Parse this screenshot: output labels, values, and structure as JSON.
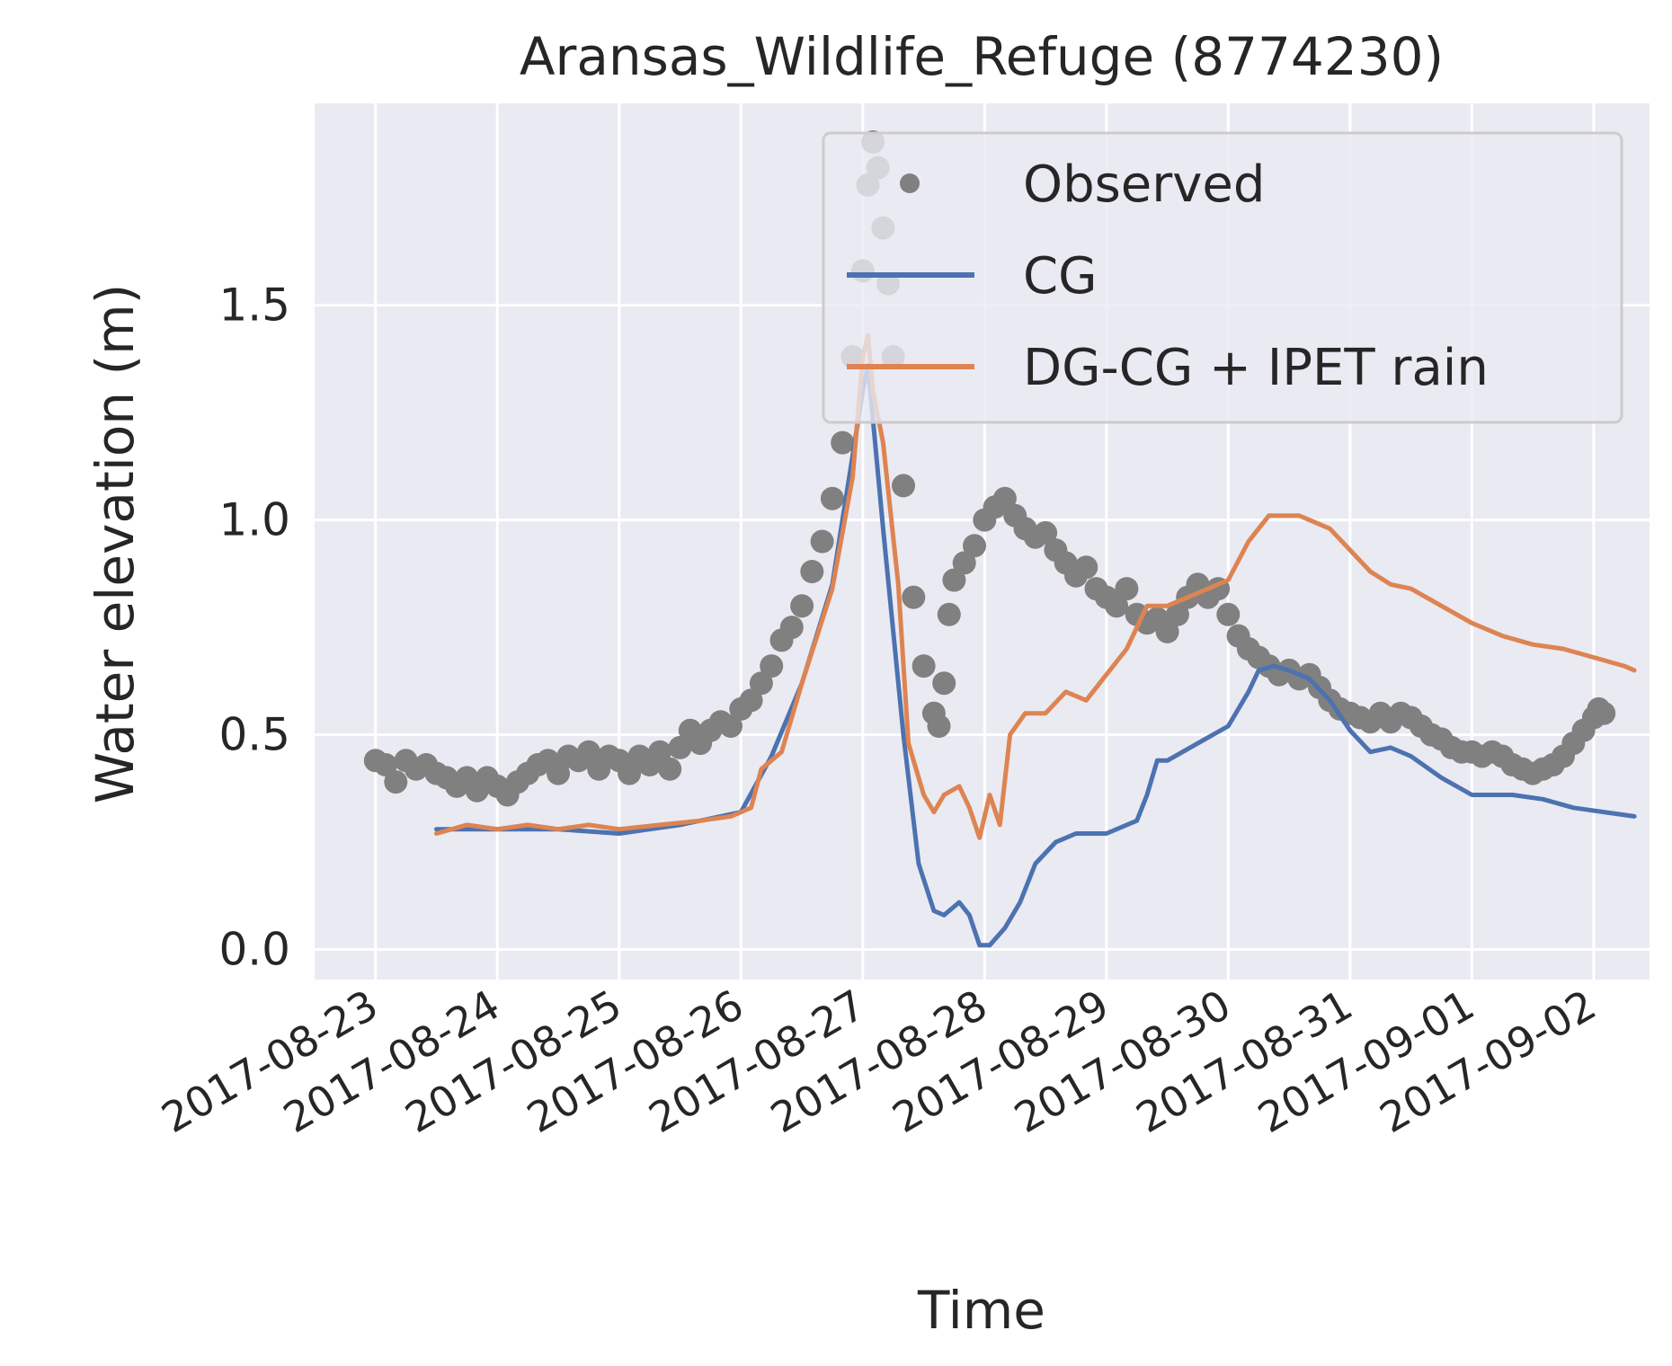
{
  "chart_data": {
    "type": "line",
    "title": "Aransas_Wildlife_Refuge (8774230)",
    "xlabel": "Time",
    "ylabel": "Water elevation (m)",
    "x_type": "date",
    "xlim": [
      "2017-08-22T12:00",
      "2017-09-02T11:00"
    ],
    "ylim": [
      -0.07,
      1.97
    ],
    "x_ticks": [
      "2017-08-23",
      "2017-08-24",
      "2017-08-25",
      "2017-08-26",
      "2017-08-27",
      "2017-08-28",
      "2017-08-29",
      "2017-08-30",
      "2017-08-31",
      "2017-09-01",
      "2017-09-02"
    ],
    "y_ticks": [
      "0.0",
      "0.5",
      "1.0",
      "1.5"
    ],
    "y_tick_values": [
      0.0,
      0.5,
      1.0,
      1.5
    ],
    "grid": true,
    "legend_position": "top-right",
    "colors": {
      "background": "#EAEAF2",
      "grid": "#FFFFFF",
      "text": "#262626"
    },
    "series": [
      {
        "name": "Observed",
        "style": "markers",
        "color": "#808080",
        "points": [
          [
            "2017-08-23T00:00",
            0.44
          ],
          [
            "2017-08-23T02:00",
            0.43
          ],
          [
            "2017-08-23T04:00",
            0.39
          ],
          [
            "2017-08-23T06:00",
            0.44
          ],
          [
            "2017-08-23T08:00",
            0.42
          ],
          [
            "2017-08-23T10:00",
            0.43
          ],
          [
            "2017-08-23T12:00",
            0.41
          ],
          [
            "2017-08-23T14:00",
            0.4
          ],
          [
            "2017-08-23T16:00",
            0.38
          ],
          [
            "2017-08-23T18:00",
            0.4
          ],
          [
            "2017-08-23T20:00",
            0.37
          ],
          [
            "2017-08-23T22:00",
            0.4
          ],
          [
            "2017-08-24T00:00",
            0.38
          ],
          [
            "2017-08-24T02:00",
            0.36
          ],
          [
            "2017-08-24T04:00",
            0.39
          ],
          [
            "2017-08-24T06:00",
            0.41
          ],
          [
            "2017-08-24T08:00",
            0.43
          ],
          [
            "2017-08-24T10:00",
            0.44
          ],
          [
            "2017-08-24T12:00",
            0.41
          ],
          [
            "2017-08-24T14:00",
            0.45
          ],
          [
            "2017-08-24T16:00",
            0.44
          ],
          [
            "2017-08-24T18:00",
            0.46
          ],
          [
            "2017-08-24T20:00",
            0.42
          ],
          [
            "2017-08-24T22:00",
            0.45
          ],
          [
            "2017-08-25T00:00",
            0.44
          ],
          [
            "2017-08-25T02:00",
            0.41
          ],
          [
            "2017-08-25T04:00",
            0.45
          ],
          [
            "2017-08-25T06:00",
            0.43
          ],
          [
            "2017-08-25T08:00",
            0.46
          ],
          [
            "2017-08-25T10:00",
            0.42
          ],
          [
            "2017-08-25T12:00",
            0.47
          ],
          [
            "2017-08-25T14:00",
            0.51
          ],
          [
            "2017-08-25T16:00",
            0.48
          ],
          [
            "2017-08-25T18:00",
            0.51
          ],
          [
            "2017-08-25T20:00",
            0.53
          ],
          [
            "2017-08-25T22:00",
            0.52
          ],
          [
            "2017-08-26T00:00",
            0.56
          ],
          [
            "2017-08-26T02:00",
            0.58
          ],
          [
            "2017-08-26T04:00",
            0.62
          ],
          [
            "2017-08-26T06:00",
            0.66
          ],
          [
            "2017-08-26T08:00",
            0.72
          ],
          [
            "2017-08-26T10:00",
            0.75
          ],
          [
            "2017-08-26T12:00",
            0.8
          ],
          [
            "2017-08-26T14:00",
            0.88
          ],
          [
            "2017-08-26T16:00",
            0.95
          ],
          [
            "2017-08-26T18:00",
            1.05
          ],
          [
            "2017-08-26T20:00",
            1.18
          ],
          [
            "2017-08-26T22:00",
            1.38
          ],
          [
            "2017-08-27T00:00",
            1.58
          ],
          [
            "2017-08-27T01:00",
            1.78
          ],
          [
            "2017-08-27T02:00",
            1.88
          ],
          [
            "2017-08-27T03:00",
            1.82
          ],
          [
            "2017-08-27T04:00",
            1.68
          ],
          [
            "2017-08-27T05:00",
            1.55
          ],
          [
            "2017-08-27T06:00",
            1.38
          ],
          [
            "2017-08-27T08:00",
            1.08
          ],
          [
            "2017-08-27T10:00",
            0.82
          ],
          [
            "2017-08-27T12:00",
            0.66
          ],
          [
            "2017-08-27T14:00",
            0.55
          ],
          [
            "2017-08-27T15:00",
            0.52
          ],
          [
            "2017-08-27T16:00",
            0.62
          ],
          [
            "2017-08-27T17:00",
            0.78
          ],
          [
            "2017-08-27T18:00",
            0.86
          ],
          [
            "2017-08-27T20:00",
            0.9
          ],
          [
            "2017-08-27T22:00",
            0.94
          ],
          [
            "2017-08-28T00:00",
            1.0
          ],
          [
            "2017-08-28T02:00",
            1.03
          ],
          [
            "2017-08-28T04:00",
            1.05
          ],
          [
            "2017-08-28T06:00",
            1.01
          ],
          [
            "2017-08-28T08:00",
            0.98
          ],
          [
            "2017-08-28T10:00",
            0.96
          ],
          [
            "2017-08-28T12:00",
            0.97
          ],
          [
            "2017-08-28T14:00",
            0.93
          ],
          [
            "2017-08-28T16:00",
            0.9
          ],
          [
            "2017-08-28T18:00",
            0.87
          ],
          [
            "2017-08-28T20:00",
            0.89
          ],
          [
            "2017-08-28T22:00",
            0.84
          ],
          [
            "2017-08-29T00:00",
            0.82
          ],
          [
            "2017-08-29T02:00",
            0.8
          ],
          [
            "2017-08-29T04:00",
            0.84
          ],
          [
            "2017-08-29T06:00",
            0.78
          ],
          [
            "2017-08-29T08:00",
            0.76
          ],
          [
            "2017-08-29T10:00",
            0.77
          ],
          [
            "2017-08-29T12:00",
            0.74
          ],
          [
            "2017-08-29T14:00",
            0.78
          ],
          [
            "2017-08-29T16:00",
            0.82
          ],
          [
            "2017-08-29T18:00",
            0.85
          ],
          [
            "2017-08-29T20:00",
            0.82
          ],
          [
            "2017-08-29T22:00",
            0.84
          ],
          [
            "2017-08-30T00:00",
            0.78
          ],
          [
            "2017-08-30T02:00",
            0.73
          ],
          [
            "2017-08-30T04:00",
            0.7
          ],
          [
            "2017-08-30T06:00",
            0.68
          ],
          [
            "2017-08-30T08:00",
            0.66
          ],
          [
            "2017-08-30T10:00",
            0.64
          ],
          [
            "2017-08-30T12:00",
            0.65
          ],
          [
            "2017-08-30T14:00",
            0.63
          ],
          [
            "2017-08-30T16:00",
            0.64
          ],
          [
            "2017-08-30T18:00",
            0.61
          ],
          [
            "2017-08-30T20:00",
            0.58
          ],
          [
            "2017-08-30T22:00",
            0.56
          ],
          [
            "2017-08-31T00:00",
            0.55
          ],
          [
            "2017-08-31T02:00",
            0.54
          ],
          [
            "2017-08-31T04:00",
            0.53
          ],
          [
            "2017-08-31T06:00",
            0.55
          ],
          [
            "2017-08-31T08:00",
            0.53
          ],
          [
            "2017-08-31T10:00",
            0.55
          ],
          [
            "2017-08-31T12:00",
            0.54
          ],
          [
            "2017-08-31T14:00",
            0.52
          ],
          [
            "2017-08-31T16:00",
            0.5
          ],
          [
            "2017-08-31T18:00",
            0.49
          ],
          [
            "2017-08-31T20:00",
            0.47
          ],
          [
            "2017-08-31T22:00",
            0.46
          ],
          [
            "2017-09-01T00:00",
            0.46
          ],
          [
            "2017-09-01T02:00",
            0.45
          ],
          [
            "2017-09-01T04:00",
            0.46
          ],
          [
            "2017-09-01T06:00",
            0.45
          ],
          [
            "2017-09-01T08:00",
            0.43
          ],
          [
            "2017-09-01T10:00",
            0.42
          ],
          [
            "2017-09-01T12:00",
            0.41
          ],
          [
            "2017-09-01T14:00",
            0.42
          ],
          [
            "2017-09-01T16:00",
            0.43
          ],
          [
            "2017-09-01T18:00",
            0.45
          ],
          [
            "2017-09-01T20:00",
            0.48
          ],
          [
            "2017-09-01T22:00",
            0.51
          ],
          [
            "2017-09-02T00:00",
            0.54
          ],
          [
            "2017-09-02T01:00",
            0.56
          ],
          [
            "2017-09-02T02:00",
            0.55
          ]
        ]
      },
      {
        "name": "CG",
        "style": "line",
        "color": "#4C72B0",
        "points": [
          [
            "2017-08-23T12:00",
            0.28
          ],
          [
            "2017-08-24T00:00",
            0.28
          ],
          [
            "2017-08-24T12:00",
            0.28
          ],
          [
            "2017-08-25T00:00",
            0.27
          ],
          [
            "2017-08-25T12:00",
            0.29
          ],
          [
            "2017-08-25T20:00",
            0.31
          ],
          [
            "2017-08-26T00:00",
            0.32
          ],
          [
            "2017-08-26T06:00",
            0.45
          ],
          [
            "2017-08-26T12:00",
            0.62
          ],
          [
            "2017-08-26T18:00",
            0.85
          ],
          [
            "2017-08-26T22:00",
            1.15
          ],
          [
            "2017-08-27T00:00",
            1.3
          ],
          [
            "2017-08-27T01:00",
            1.36
          ],
          [
            "2017-08-27T04:00",
            0.98
          ],
          [
            "2017-08-27T08:00",
            0.5
          ],
          [
            "2017-08-27T11:00",
            0.2
          ],
          [
            "2017-08-27T14:00",
            0.09
          ],
          [
            "2017-08-27T16:00",
            0.08
          ],
          [
            "2017-08-27T19:00",
            0.11
          ],
          [
            "2017-08-27T21:00",
            0.08
          ],
          [
            "2017-08-27T23:00",
            0.01
          ],
          [
            "2017-08-28T01:00",
            0.01
          ],
          [
            "2017-08-28T04:00",
            0.05
          ],
          [
            "2017-08-28T07:00",
            0.11
          ],
          [
            "2017-08-28T10:00",
            0.2
          ],
          [
            "2017-08-28T14:00",
            0.25
          ],
          [
            "2017-08-28T18:00",
            0.27
          ],
          [
            "2017-08-29T00:00",
            0.27
          ],
          [
            "2017-08-29T06:00",
            0.3
          ],
          [
            "2017-08-29T08:00",
            0.36
          ],
          [
            "2017-08-29T10:00",
            0.44
          ],
          [
            "2017-08-29T12:00",
            0.44
          ],
          [
            "2017-08-29T18:00",
            0.48
          ],
          [
            "2017-08-30T00:00",
            0.52
          ],
          [
            "2017-08-30T04:00",
            0.6
          ],
          [
            "2017-08-30T06:00",
            0.65
          ],
          [
            "2017-08-30T09:00",
            0.66
          ],
          [
            "2017-08-30T12:00",
            0.65
          ],
          [
            "2017-08-30T16:00",
            0.63
          ],
          [
            "2017-08-30T20:00",
            0.58
          ],
          [
            "2017-08-31T00:00",
            0.51
          ],
          [
            "2017-08-31T04:00",
            0.46
          ],
          [
            "2017-08-31T08:00",
            0.47
          ],
          [
            "2017-08-31T12:00",
            0.45
          ],
          [
            "2017-08-31T18:00",
            0.4
          ],
          [
            "2017-09-01T00:00",
            0.36
          ],
          [
            "2017-09-01T08:00",
            0.36
          ],
          [
            "2017-09-01T14:00",
            0.35
          ],
          [
            "2017-09-01T20:00",
            0.33
          ],
          [
            "2017-09-02T02:00",
            0.32
          ],
          [
            "2017-09-02T08:00",
            0.31
          ]
        ]
      },
      {
        "name": "DG-CG + IPET rain",
        "style": "line",
        "color": "#DD8452",
        "points": [
          [
            "2017-08-23T12:00",
            0.27
          ],
          [
            "2017-08-23T18:00",
            0.29
          ],
          [
            "2017-08-24T00:00",
            0.28
          ],
          [
            "2017-08-24T06:00",
            0.29
          ],
          [
            "2017-08-24T12:00",
            0.28
          ],
          [
            "2017-08-24T18:00",
            0.29
          ],
          [
            "2017-08-25T00:00",
            0.28
          ],
          [
            "2017-08-25T08:00",
            0.29
          ],
          [
            "2017-08-25T16:00",
            0.3
          ],
          [
            "2017-08-25T22:00",
            0.31
          ],
          [
            "2017-08-26T02:00",
            0.33
          ],
          [
            "2017-08-26T04:00",
            0.42
          ],
          [
            "2017-08-26T08:00",
            0.46
          ],
          [
            "2017-08-26T12:00",
            0.62
          ],
          [
            "2017-08-26T18:00",
            0.84
          ],
          [
            "2017-08-26T22:00",
            1.1
          ],
          [
            "2017-08-27T00:00",
            1.38
          ],
          [
            "2017-08-27T01:00",
            1.43
          ],
          [
            "2017-08-27T02:00",
            1.3
          ],
          [
            "2017-08-27T04:00",
            1.18
          ],
          [
            "2017-08-27T07:00",
            0.85
          ],
          [
            "2017-08-27T09:00",
            0.48
          ],
          [
            "2017-08-27T12:00",
            0.36
          ],
          [
            "2017-08-27T14:00",
            0.32
          ],
          [
            "2017-08-27T16:00",
            0.36
          ],
          [
            "2017-08-27T19:00",
            0.38
          ],
          [
            "2017-08-27T21:00",
            0.33
          ],
          [
            "2017-08-27T23:00",
            0.26
          ],
          [
            "2017-08-28T01:00",
            0.36
          ],
          [
            "2017-08-28T03:00",
            0.29
          ],
          [
            "2017-08-28T05:00",
            0.5
          ],
          [
            "2017-08-28T08:00",
            0.55
          ],
          [
            "2017-08-28T12:00",
            0.55
          ],
          [
            "2017-08-28T16:00",
            0.6
          ],
          [
            "2017-08-28T20:00",
            0.58
          ],
          [
            "2017-08-29T00:00",
            0.64
          ],
          [
            "2017-08-29T04:00",
            0.7
          ],
          [
            "2017-08-29T08:00",
            0.8
          ],
          [
            "2017-08-29T12:00",
            0.8
          ],
          [
            "2017-08-29T18:00",
            0.83
          ],
          [
            "2017-08-30T00:00",
            0.86
          ],
          [
            "2017-08-30T04:00",
            0.95
          ],
          [
            "2017-08-30T08:00",
            1.01
          ],
          [
            "2017-08-30T14:00",
            1.01
          ],
          [
            "2017-08-30T20:00",
            0.98
          ],
          [
            "2017-08-31T00:00",
            0.93
          ],
          [
            "2017-08-31T04:00",
            0.88
          ],
          [
            "2017-08-31T08:00",
            0.85
          ],
          [
            "2017-08-31T12:00",
            0.84
          ],
          [
            "2017-08-31T18:00",
            0.8
          ],
          [
            "2017-09-01T00:00",
            0.76
          ],
          [
            "2017-09-01T06:00",
            0.73
          ],
          [
            "2017-09-01T12:00",
            0.71
          ],
          [
            "2017-09-01T18:00",
            0.7
          ],
          [
            "2017-09-02T00:00",
            0.68
          ],
          [
            "2017-09-02T06:00",
            0.66
          ],
          [
            "2017-09-02T08:00",
            0.65
          ]
        ]
      }
    ]
  }
}
